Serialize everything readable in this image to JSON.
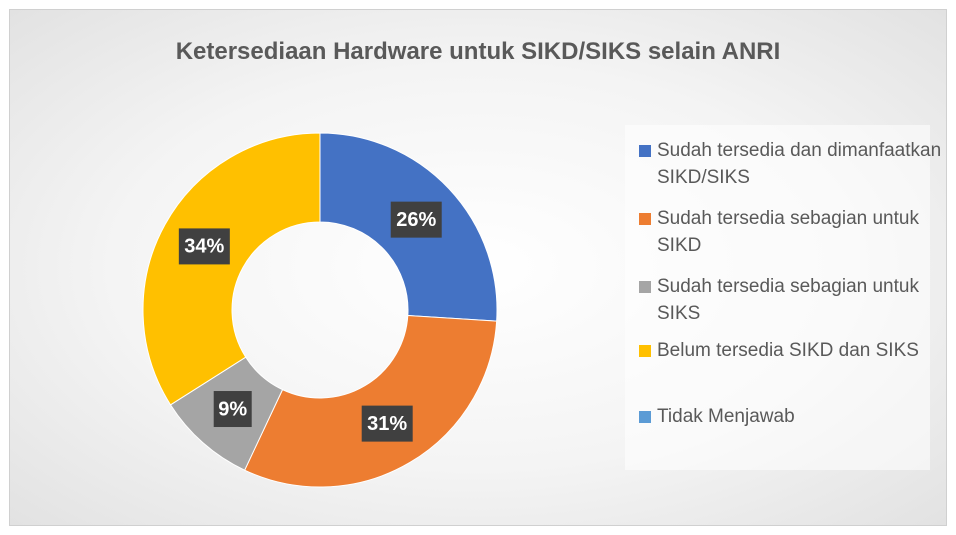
{
  "chart_data": {
    "type": "donut",
    "title": "Ketersediaan Hardware untuk SIKD/SIKS selain ANRI",
    "categories": [
      "Sudah tersedia dan dimanfaatkan SIKD/SIKS",
      "Sudah tersedia sebagian untuk SIKD",
      "Sudah tersedia sebagian untuk SIKS",
      "Belum tersedia SIKD dan SIKS",
      "Tidak Menjawab"
    ],
    "values": [
      26,
      31,
      9,
      34,
      0
    ],
    "value_labels": [
      "26%",
      "31%",
      "9%",
      "34%",
      null
    ],
    "colors": [
      "#4472c4",
      "#ed7d31",
      "#a5a5a5",
      "#ffc000",
      "#5b9bd5"
    ],
    "legend": "right"
  }
}
